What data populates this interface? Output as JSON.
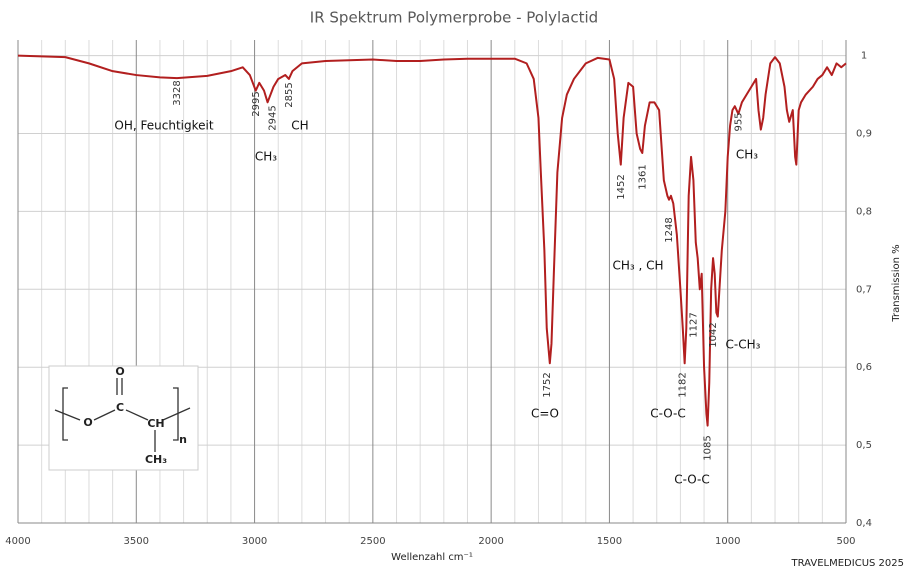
{
  "chart_data": {
    "type": "line",
    "title": "IR Spektrum Polymerprobe - Polylactid",
    "x_label": "Wellenzahl cm⁻¹",
    "y_label": "Transmission %",
    "credit": "TRAVELMEDICUS 2025",
    "xlim": [
      4000,
      500
    ],
    "ylim": [
      0.4,
      1.02
    ],
    "xticks": [
      4000,
      3500,
      3000,
      2500,
      2000,
      1500,
      1000,
      500
    ],
    "xminorticks": [
      3900,
      3800,
      3700,
      3600,
      3400,
      3300,
      3200,
      3100,
      2900,
      2800,
      2700,
      2600,
      2400,
      2300,
      2200,
      2100,
      1900,
      1800,
      1700,
      1600,
      1400,
      1300,
      1200,
      1100,
      900,
      800,
      700,
      600
    ],
    "yticks": [
      {
        "value": 0.4,
        "label": "0,4"
      },
      {
        "value": 0.5,
        "label": "0,5"
      },
      {
        "value": 0.6,
        "label": "0,6"
      },
      {
        "value": 0.7,
        "label": "0,7"
      },
      {
        "value": 0.8,
        "label": "0,8"
      },
      {
        "value": 0.9,
        "label": "0,9"
      },
      1
    ],
    "grid": true,
    "series": [
      {
        "name": "Polylactid",
        "color": "#b21f1f",
        "x": [
          4000,
          3800,
          3700,
          3600,
          3500,
          3400,
          3328,
          3200,
          3100,
          3050,
          3020,
          2995,
          2980,
          2960,
          2945,
          2920,
          2900,
          2870,
          2855,
          2840,
          2800,
          2700,
          2600,
          2500,
          2400,
          2300,
          2200,
          2100,
          2000,
          1900,
          1850,
          1820,
          1800,
          1790,
          1775,
          1765,
          1752,
          1745,
          1735,
          1720,
          1700,
          1680,
          1650,
          1600,
          1550,
          1500,
          1480,
          1465,
          1452,
          1440,
          1420,
          1400,
          1385,
          1370,
          1361,
          1350,
          1330,
          1310,
          1290,
          1270,
          1255,
          1248,
          1240,
          1230,
          1215,
          1200,
          1190,
          1182,
          1175,
          1165,
          1155,
          1145,
          1135,
          1127,
          1118,
          1110,
          1100,
          1090,
          1085,
          1078,
          1070,
          1062,
          1055,
          1048,
          1042,
          1035,
          1025,
          1010,
          1000,
          990,
          980,
          970,
          955,
          940,
          920,
          900,
          880,
          870,
          860,
          850,
          840,
          820,
          800,
          780,
          760,
          750,
          740,
          735,
          725,
          715,
          710,
          700,
          690,
          670,
          640,
          620,
          600,
          580,
          560,
          540,
          520,
          500
        ],
        "values": [
          1.0,
          0.998,
          0.99,
          0.98,
          0.975,
          0.972,
          0.971,
          0.974,
          0.98,
          0.985,
          0.975,
          0.955,
          0.965,
          0.955,
          0.94,
          0.96,
          0.97,
          0.975,
          0.97,
          0.98,
          0.99,
          0.993,
          0.994,
          0.995,
          0.993,
          0.993,
          0.995,
          0.996,
          0.996,
          0.996,
          0.99,
          0.97,
          0.92,
          0.85,
          0.75,
          0.65,
          0.605,
          0.63,
          0.72,
          0.85,
          0.92,
          0.95,
          0.97,
          0.99,
          0.997,
          0.995,
          0.97,
          0.9,
          0.86,
          0.92,
          0.965,
          0.96,
          0.9,
          0.88,
          0.875,
          0.91,
          0.94,
          0.94,
          0.93,
          0.84,
          0.82,
          0.815,
          0.82,
          0.81,
          0.77,
          0.7,
          0.65,
          0.605,
          0.65,
          0.82,
          0.87,
          0.84,
          0.76,
          0.74,
          0.7,
          0.72,
          0.6,
          0.54,
          0.525,
          0.58,
          0.7,
          0.74,
          0.72,
          0.67,
          0.665,
          0.7,
          0.75,
          0.8,
          0.87,
          0.91,
          0.93,
          0.935,
          0.925,
          0.94,
          0.95,
          0.96,
          0.97,
          0.93,
          0.905,
          0.92,
          0.95,
          0.99,
          0.998,
          0.99,
          0.96,
          0.93,
          0.915,
          0.92,
          0.93,
          0.87,
          0.86,
          0.93,
          0.94,
          0.95,
          0.96,
          0.97,
          0.975,
          0.985,
          0.975,
          0.99,
          0.985,
          0.99
        ]
      }
    ],
    "peaks": [
      3328,
      2995,
      2945,
      2855,
      1752,
      1452,
      1361,
      1248,
      1182,
      1127,
      1085,
      1042,
      955
    ],
    "annotations": [
      "OH, Feuchtigkeit",
      "CH₃",
      "CH",
      "C=O",
      "CH₃ , CH",
      "C-O-C",
      "C-O-C",
      "C-CH₃",
      "CH₃"
    ],
    "structure_labels": [
      "O",
      "O",
      "C",
      "CH",
      "CH₃",
      "n"
    ]
  }
}
